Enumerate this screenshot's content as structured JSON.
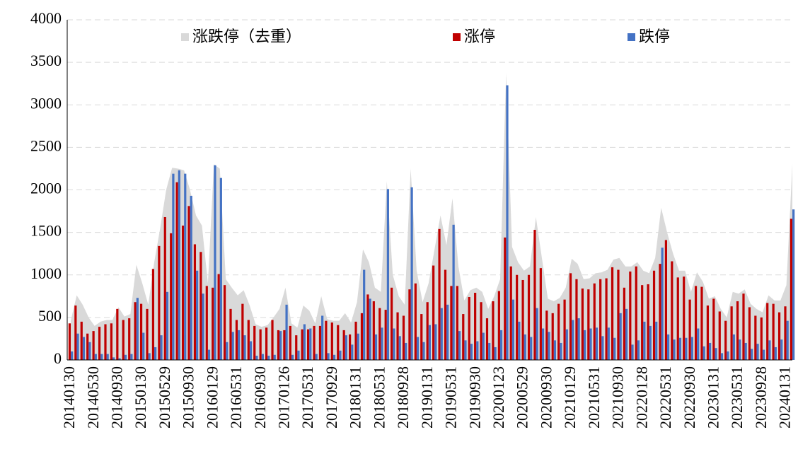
{
  "chart_data": {
    "type": "bar",
    "categories": [
      "20140130",
      null,
      null,
      null,
      "20140530",
      null,
      null,
      null,
      "20140930",
      null,
      null,
      null,
      "20150130",
      null,
      null,
      null,
      "20150529",
      null,
      null,
      null,
      "20150930",
      null,
      null,
      null,
      "20160129",
      null,
      null,
      null,
      "20160531",
      null,
      null,
      null,
      "20160930",
      null,
      null,
      null,
      "20170126",
      null,
      null,
      null,
      "20170531",
      null,
      null,
      null,
      "20170929",
      null,
      null,
      null,
      "20180131",
      null,
      null,
      null,
      "20180531",
      null,
      null,
      null,
      "20180928",
      null,
      null,
      null,
      "20190131",
      null,
      null,
      null,
      "20190531",
      null,
      null,
      null,
      "20190930",
      null,
      null,
      null,
      "20200123",
      null,
      null,
      null,
      "20200529",
      null,
      null,
      null,
      "20200930",
      null,
      null,
      null,
      "20210129",
      null,
      null,
      null,
      "20210531",
      null,
      null,
      null,
      "20210930",
      null,
      null,
      null,
      "20220128",
      null,
      null,
      null,
      "20220531",
      null,
      null,
      null,
      "20220930",
      null,
      null,
      null,
      "20230131",
      null,
      null,
      null,
      "20230531",
      null,
      null,
      null,
      "20230928",
      null,
      null,
      null,
      "20240131",
      null
    ],
    "series": [
      {
        "name": "涨跌停（去重）",
        "type": "area",
        "color": "#d9d9d9",
        "values": [
          460,
          760,
          650,
          500,
          400,
          450,
          470,
          470,
          620,
          510,
          540,
          1120,
          900,
          650,
          1150,
          1550,
          2000,
          2260,
          2250,
          2230,
          2000,
          1700,
          1580,
          900,
          2300,
          2250,
          950,
          850,
          760,
          820,
          640,
          420,
          390,
          410,
          500,
          600,
          850,
          430,
          380,
          640,
          580,
          430,
          750,
          480,
          460,
          460,
          550,
          440,
          680,
          1300,
          1150,
          850,
          800,
          2100,
          1000,
          750,
          650,
          2250,
          1050,
          680,
          900,
          1300,
          1700,
          1350,
          1900,
          1100,
          700,
          820,
          850,
          800,
          600,
          750,
          950,
          3370,
          1330,
          1150,
          1050,
          1100,
          1680,
          1200,
          720,
          690,
          730,
          850,
          1190,
          1130,
          950,
          960,
          1020,
          1030,
          1060,
          1180,
          1200,
          1100,
          1100,
          1150,
          1050,
          1020,
          1200,
          1790,
          1500,
          1250,
          1050,
          1050,
          800,
          1030,
          920,
          720,
          750,
          600,
          500,
          800,
          780,
          830,
          660,
          600,
          560,
          760,
          700,
          700,
          880,
          2300
        ]
      },
      {
        "name": "涨停",
        "color": "#c00000",
        "values": [
          430,
          640,
          450,
          310,
          340,
          390,
          420,
          430,
          600,
          470,
          490,
          680,
          660,
          600,
          1070,
          1340,
          1680,
          1490,
          2090,
          1580,
          1810,
          1360,
          1270,
          870,
          850,
          1010,
          880,
          600,
          470,
          660,
          470,
          400,
          360,
          380,
          470,
          350,
          350,
          400,
          290,
          360,
          360,
          400,
          400,
          460,
          440,
          410,
          350,
          300,
          450,
          550,
          770,
          690,
          610,
          590,
          850,
          560,
          520,
          830,
          900,
          540,
          680,
          1110,
          1540,
          1060,
          870,
          870,
          540,
          740,
          790,
          680,
          490,
          690,
          810,
          1440,
          1100,
          1000,
          940,
          1000,
          1530,
          1080,
          580,
          550,
          660,
          710,
          1020,
          950,
          840,
          830,
          900,
          950,
          960,
          1090,
          1060,
          850,
          1040,
          1100,
          880,
          890,
          1050,
          1130,
          1410,
          1160,
          970,
          980,
          710,
          870,
          860,
          640,
          720,
          570,
          460,
          630,
          690,
          780,
          620,
          520,
          500,
          670,
          660,
          560,
          630,
          1660
        ]
      },
      {
        "name": "跌停",
        "color": "#4472c4",
        "values": [
          100,
          310,
          270,
          210,
          70,
          70,
          70,
          30,
          20,
          60,
          70,
          730,
          320,
          80,
          150,
          290,
          800,
          2190,
          2230,
          2190,
          1930,
          1050,
          780,
          120,
          2290,
          2140,
          210,
          330,
          350,
          290,
          220,
          50,
          70,
          50,
          60,
          340,
          650,
          60,
          110,
          420,
          370,
          70,
          520,
          80,
          60,
          110,
          290,
          180,
          310,
          1060,
          720,
          300,
          380,
          2010,
          370,
          280,
          200,
          2030,
          270,
          210,
          410,
          420,
          610,
          650,
          1590,
          340,
          230,
          190,
          220,
          320,
          200,
          150,
          350,
          3230,
          710,
          450,
          300,
          270,
          610,
          370,
          330,
          230,
          200,
          360,
          470,
          490,
          350,
          370,
          380,
          280,
          380,
          260,
          550,
          600,
          180,
          230,
          450,
          400,
          450,
          1320,
          300,
          240,
          260,
          260,
          270,
          370,
          160,
          200,
          140,
          80,
          100,
          300,
          240,
          200,
          130,
          190,
          120,
          230,
          150,
          240,
          460,
          1770
        ]
      }
    ],
    "ylim": [
      0,
      4000
    ],
    "yticks": [
      0,
      500,
      1000,
      1500,
      2000,
      2500,
      3000,
      3500,
      4000
    ],
    "grid": true
  }
}
